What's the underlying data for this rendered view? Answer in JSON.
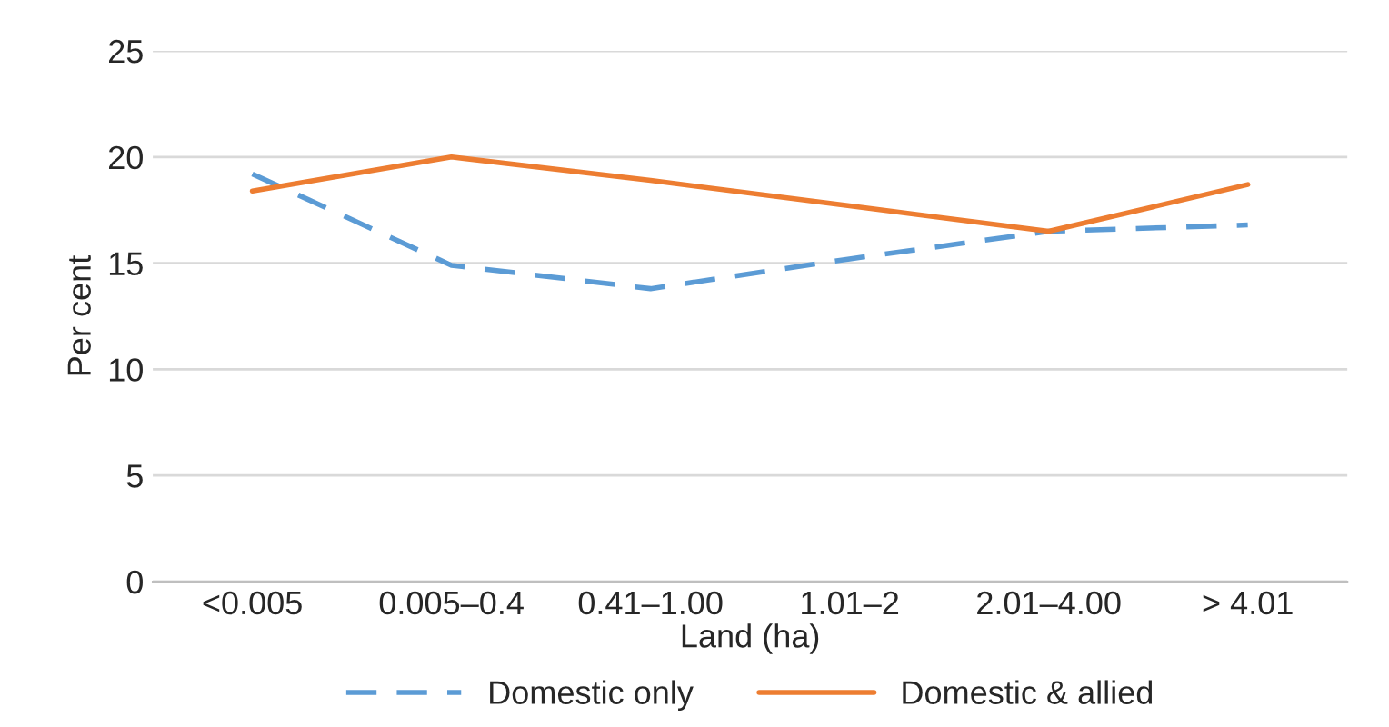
{
  "chart_data": {
    "type": "line",
    "xlabel": "Land (ha)",
    "ylabel": "Per cent",
    "categories": [
      "<0.005",
      "0.005–0.4",
      "0.41–1.00",
      "1.01–2",
      "2.01–4.00",
      "> 4.01"
    ],
    "series": [
      {
        "name": "Domestic only",
        "color": "#5b9bd5",
        "values": [
          19.2,
          14.9,
          13.8,
          15.2,
          16.5,
          16.8
        ],
        "line_style": "dashed"
      },
      {
        "name": "Domestic & allied",
        "color": "#ed7d31",
        "values": [
          18.4,
          20.0,
          18.9,
          17.7,
          16.5,
          18.7
        ],
        "line_style": "solid"
      }
    ],
    "ylim": [
      0,
      25
    ],
    "yticks": [
      0,
      5,
      10,
      15,
      20,
      25
    ],
    "grid": "y",
    "legend": "bottom"
  }
}
